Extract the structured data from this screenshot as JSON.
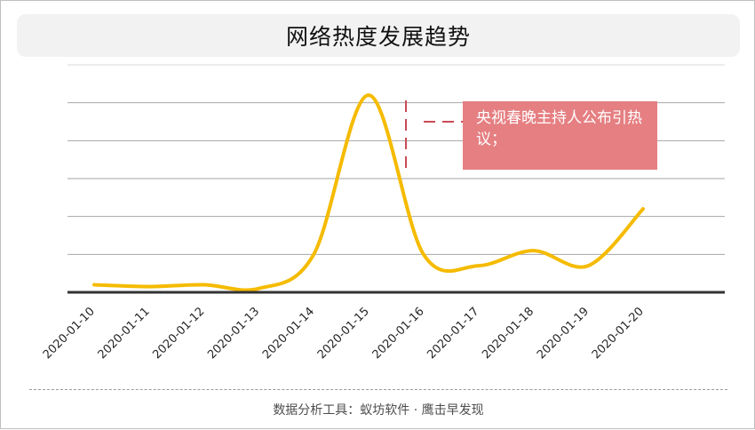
{
  "title": "网络热度发展趋势",
  "annotation": {
    "text": "央视春晚主持人公布引热议；"
  },
  "footer": {
    "text": "数据分析工具：蚁坊软件 · 鹰击早发现"
  },
  "colors": {
    "line": "#f5bb00",
    "annotation_bg": "#e57f82",
    "annotation_marker": "#c94a55",
    "grid": "#a6a6a6",
    "axis": "#333333"
  },
  "chart_data": {
    "type": "line",
    "title": "网络热度发展趋势",
    "categories": [
      "2020-01-10",
      "2020-01-11",
      "2020-01-12",
      "2020-01-13",
      "2020-01-14",
      "2020-01-15",
      "2020-01-16",
      "2020-01-17",
      "2020-01-18",
      "2020-01-19",
      "2020-01-20"
    ],
    "series": [
      {
        "values": [
          2,
          1.5,
          2,
          1,
          10,
          52,
          10,
          7,
          11,
          7,
          22
        ]
      }
    ],
    "ylim": [
      0,
      60
    ],
    "y_gridlines": [
      0,
      10,
      20,
      30,
      40,
      50,
      60
    ],
    "y_ticks_visible": false,
    "grid": true,
    "smooth": true,
    "annotation": {
      "category": "2020-01-15",
      "text": "央视春晚主持人公布引热议；"
    }
  }
}
